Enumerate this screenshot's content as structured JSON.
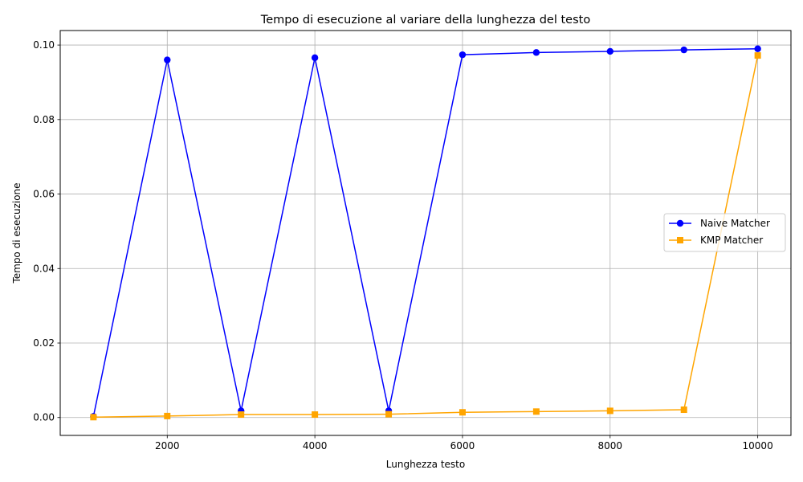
{
  "chart_data": {
    "type": "line",
    "title": "Tempo di esecuzione al variare della lunghezza del testo",
    "xlabel": "Lunghezza testo",
    "ylabel": "Tempo di esecuzione",
    "xlim": [
      550,
      10450
    ],
    "ylim": [
      -0.0048,
      0.1039
    ],
    "xticks": [
      2000,
      4000,
      6000,
      8000,
      10000
    ],
    "xtick_labels": [
      "2000",
      "4000",
      "6000",
      "8000",
      "10000"
    ],
    "yticks": [
      0.0,
      0.02,
      0.04,
      0.06,
      0.08,
      0.1
    ],
    "ytick_labels": [
      "0.00",
      "0.02",
      "0.04",
      "0.06",
      "0.08",
      "0.10"
    ],
    "grid": true,
    "legend_position": "center-right",
    "x": [
      1000,
      2000,
      3000,
      4000,
      5000,
      6000,
      7000,
      8000,
      9000,
      10000
    ],
    "series": [
      {
        "name": "Naive Matcher",
        "color": "#0000ff",
        "marker": "circle",
        "values": [
          0.0003,
          0.096,
          0.0018,
          0.0966,
          0.0018,
          0.0974,
          0.098,
          0.0983,
          0.0987,
          0.099
        ]
      },
      {
        "name": "KMP Matcher",
        "color": "#ffa500",
        "marker": "square",
        "values": [
          0.0001,
          0.0004,
          0.0008,
          0.0008,
          0.0009,
          0.0014,
          0.0016,
          0.0018,
          0.0021,
          0.0972
        ]
      }
    ]
  }
}
